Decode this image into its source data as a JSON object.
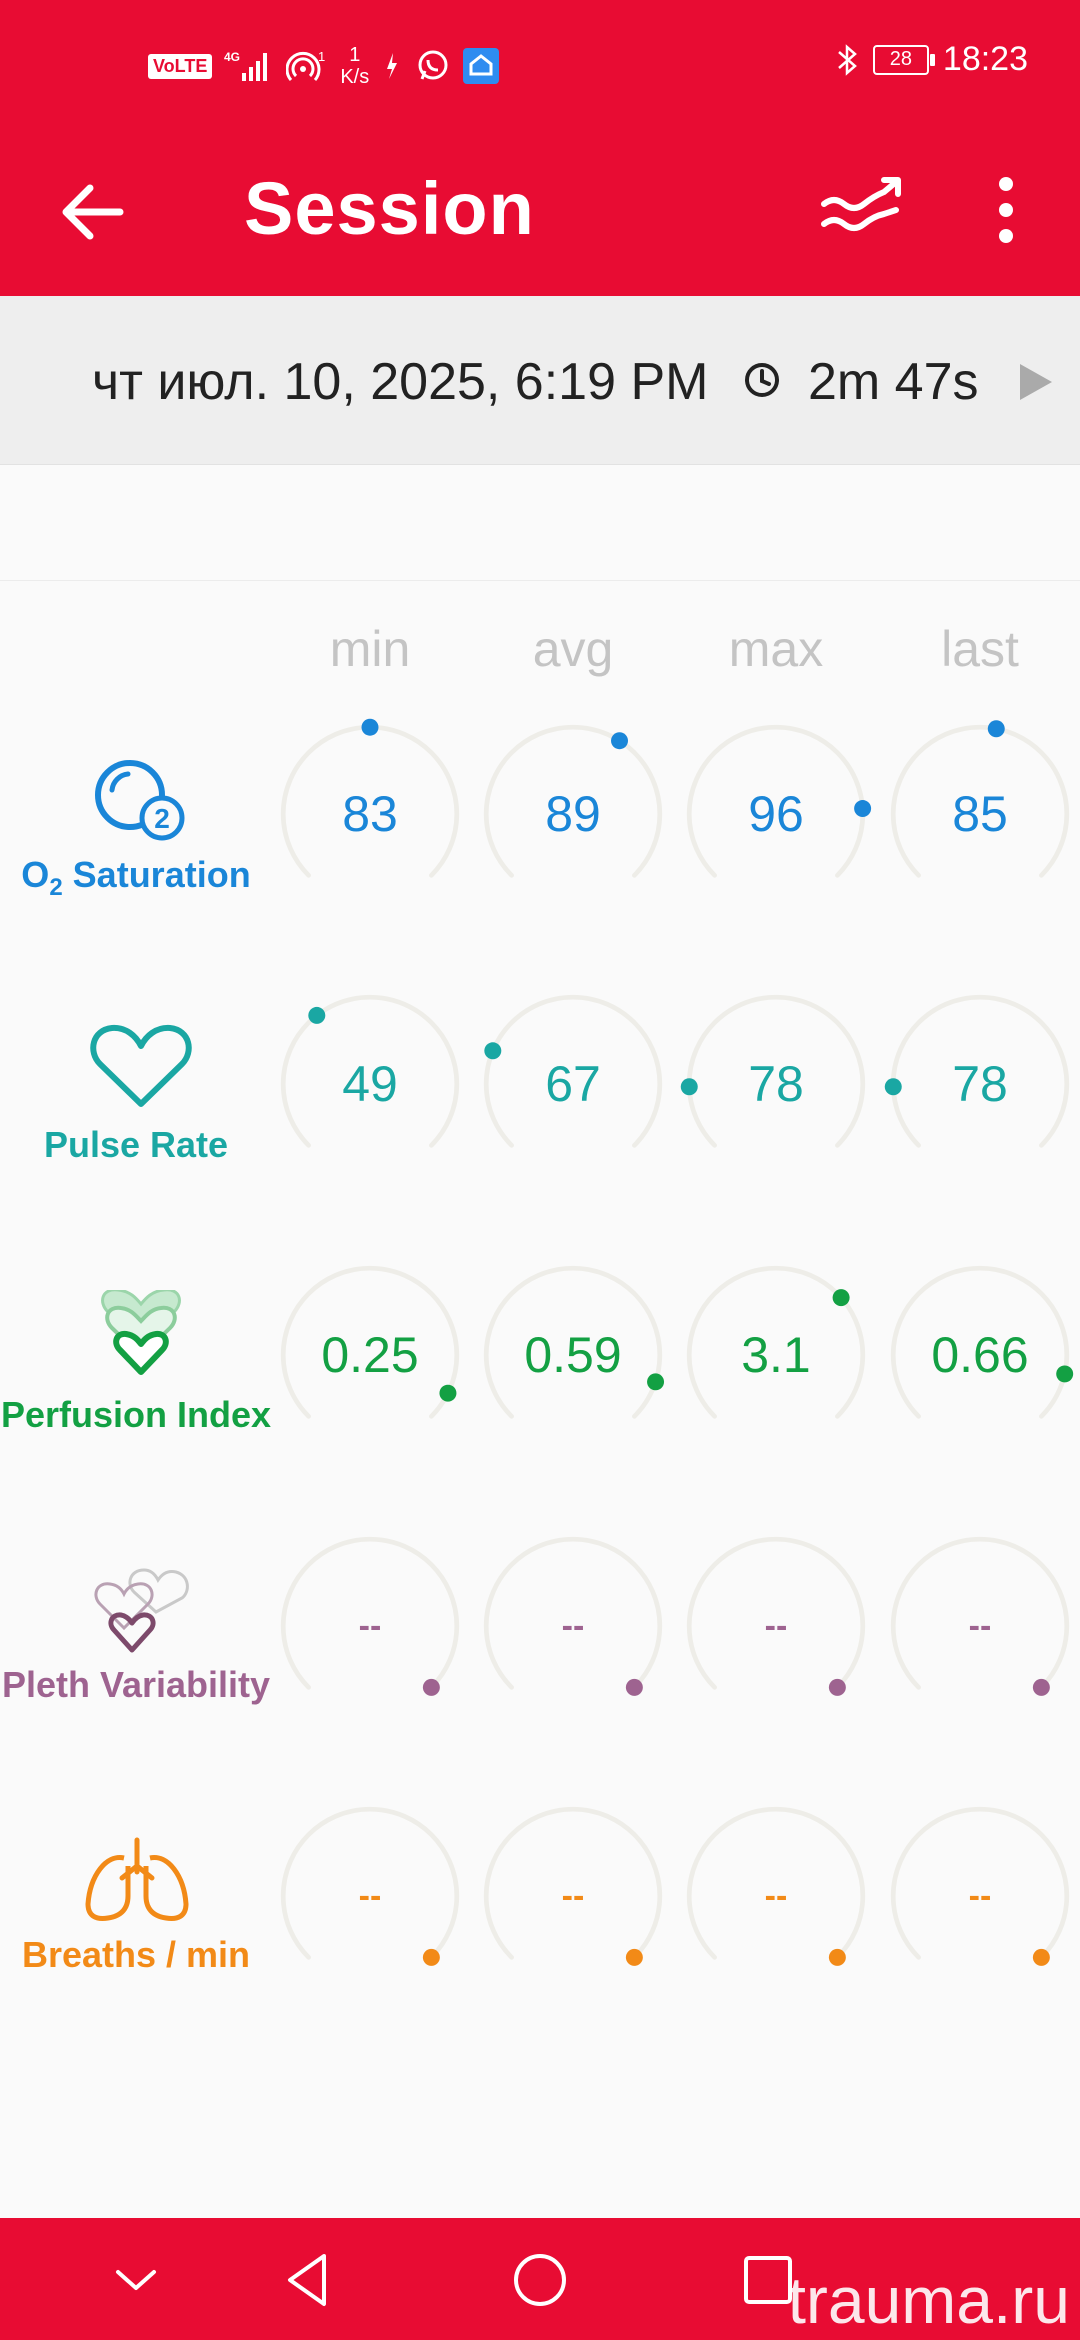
{
  "status_bar": {
    "volte": "VoLTE",
    "network": "4G",
    "hotspot_count": "1",
    "net_speed_value": "1",
    "net_speed_unit": "K/s",
    "battery": "28",
    "time": "18:23"
  },
  "app_bar": {
    "title": "Session",
    "back_icon": "arrow-left",
    "trend_icon": "trend-lines",
    "more_icon": "more-vertical"
  },
  "session": {
    "date": "чт июл. 10, 2025, 6:19 PM",
    "duration": "2m 47s"
  },
  "columns": [
    "min",
    "avg",
    "max",
    "last"
  ],
  "metrics": [
    {
      "label_main": "O",
      "label_sub": "2",
      "label_rest": " Saturation",
      "color": "#1a86d8",
      "icon": "o2-icon",
      "values": [
        "83",
        "89",
        "96",
        "85"
      ],
      "levels": [
        0.5,
        0.62,
        0.82,
        0.54
      ]
    },
    {
      "label": "Pulse Rate",
      "color": "#1aa7a3",
      "icon": "heart-icon",
      "values": [
        "49",
        "67",
        "78",
        "78"
      ],
      "levels": [
        0.36,
        0.25,
        0.16,
        0.16
      ]
    },
    {
      "label": "Perfusion Index",
      "color": "#13a043",
      "icon": "perfusion-hearts-icon",
      "values": [
        "0.25",
        "0.59",
        "3.1",
        "0.66"
      ],
      "levels": [
        0.93,
        0.9,
        0.68,
        0.88
      ]
    },
    {
      "label": "Pleth Variability",
      "color": "#9e6390",
      "icon": "pleth-hearts-icon",
      "values": [
        "--",
        "--",
        "--",
        "--"
      ],
      "levels": [
        1,
        1,
        1,
        1
      ]
    },
    {
      "label": "Breaths / min",
      "color": "#f28a17",
      "icon": "lungs-icon",
      "values": [
        "--",
        "--",
        "--",
        "--"
      ],
      "levels": [
        1,
        1,
        1,
        1
      ]
    }
  ],
  "nav": {
    "back_icon": "triangle-back",
    "home_icon": "circle-home",
    "recents_icon": "square-recents",
    "down_icon": "chevron-down"
  },
  "watermark": "trauma.ru",
  "colors": {
    "brand": "#e80c33",
    "track": "#eeede8",
    "column_header": "#c4c4c4"
  }
}
